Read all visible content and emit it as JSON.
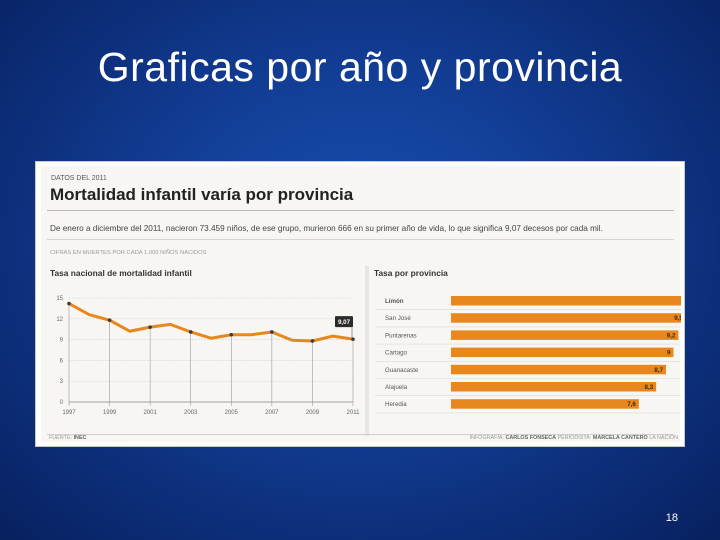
{
  "slide": {
    "title": "Graficas por año y provincia",
    "page_number": "18"
  },
  "figure": {
    "kicker": "DATOS DEL 2011",
    "headline": "Mortalidad infantil varía por provincia",
    "lede": "De enero a diciembre del 2011, nacieron 73.459 niños, de ese grupo, murieron 666  en su primer año de vida, lo que significa 9,07 decesos por cada mil.",
    "units_note": "CIFRAS EN MUERTES POR CADA 1.000 NIÑOS NACIDOS",
    "source_label": "FUENTE:",
    "source_value": "INEC",
    "credit_infografia_label": "INFOGRAFÍA:",
    "credit_infografia_value": "CARLOS FONSECA",
    "credit_periodista_label": "PERIODISTA:",
    "credit_periodista_value": "MARCELA CANTERO",
    "credit_outlet": "LA NACIÓN"
  },
  "colors": {
    "accent": "#e8871e",
    "grid": "#c9c9c9",
    "callout": "#2b2b2b"
  },
  "chart_data": [
    {
      "type": "line",
      "title": "Tasa nacional de mortalidad infantil",
      "x": [
        1997,
        1998,
        1999,
        2000,
        2001,
        2002,
        2003,
        2004,
        2005,
        2006,
        2007,
        2008,
        2009,
        2010,
        2011
      ],
      "x_tick_labels": [
        "1997",
        "1999",
        "2001",
        "2003",
        "2005",
        "2007",
        "2009",
        "2011"
      ],
      "values": [
        14.2,
        12.6,
        11.8,
        10.2,
        10.8,
        11.2,
        10.1,
        9.2,
        9.7,
        9.7,
        10.1,
        8.9,
        8.8,
        9.5,
        9.07
      ],
      "y_ticks": [
        "0",
        "3",
        "6",
        "9",
        "12",
        "15"
      ],
      "ylim": [
        0,
        15
      ],
      "callout_label": "9,07",
      "xlabel": "",
      "ylabel": ""
    },
    {
      "type": "bar",
      "orientation": "horizontal",
      "title": "Tasa por provincia",
      "categories": [
        "Limón",
        "San José",
        "Puntarenas",
        "Cartago",
        "Guanacaste",
        "Alajuela",
        "Heredia"
      ],
      "values": [
        10.6,
        9.5,
        9.2,
        9,
        8.7,
        8.3,
        7.6
      ],
      "value_labels": [
        "10,6",
        "9,5",
        "9,2",
        "9",
        "8,7",
        "8,3",
        "7,6"
      ],
      "xlim": [
        0,
        10.6
      ]
    }
  ]
}
